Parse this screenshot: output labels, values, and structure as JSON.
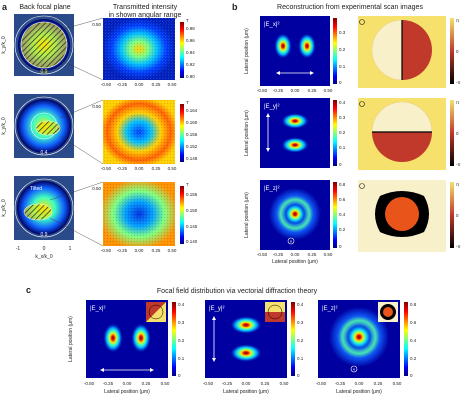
{
  "panel_a": {
    "label": "a",
    "col1_title": "Back focal plane",
    "col2_title_1": "Transmitted intensity",
    "col2_title_2": "in shown angular range",
    "bfp_ylabel": "k_y/k_0",
    "bfp_xlabel": "k_x/k_0",
    "bfp_ticks": [
      "-1",
      "0",
      "1"
    ],
    "na_labels": [
      "0.9",
      "0.4",
      "0.9"
    ],
    "tilt_label": "Tilted",
    "scan_ticks": [
      "-0.50",
      "-0.25",
      "0.00",
      "0.25",
      "0.50"
    ],
    "cbar1_ticks": [
      "T",
      "0.98",
      "0.96",
      "0.94",
      "0.92",
      "0.90"
    ],
    "cbar2_ticks": [
      "T",
      "0.164",
      "0.160",
      "0.156",
      "0.152",
      "0.148"
    ],
    "cbar3_ticks": [
      "T",
      "0.155",
      "0.150",
      "0.145",
      "0.140"
    ]
  },
  "panel_b": {
    "label": "b",
    "title": "Reconstruction from experimental scan images",
    "row_labels": [
      "|E_x|²",
      "|E_y|²",
      "|E_z|²"
    ],
    "ylabel": "Lateral position (μm)",
    "xlabel": "Lateral position (μm)",
    "ticks": [
      "-0.50",
      "-0.25",
      "0.00",
      "0.25",
      "0.50"
    ],
    "cbar1_ticks": [
      "0.3",
      "0.2",
      "0.1",
      "0"
    ],
    "cbar2_ticks": [
      "0.4",
      "0.3",
      "0.2",
      "0.1",
      "0"
    ],
    "cbar3_ticks": [
      "0.8",
      "0.6",
      "0.4",
      "0.2",
      "0"
    ],
    "phase_ticks": [
      "π",
      "0",
      "-π"
    ]
  },
  "panel_c": {
    "label": "c",
    "title": "Focal field distribution via vectorial diffraction theory",
    "row_labels": [
      "|E_x|²",
      "|E_y|²",
      "|E_z|²"
    ],
    "ylabel": "Lateral position (μm)",
    "xlabel": "Lateral position (μm)",
    "ticks": [
      "-0.50",
      "-0.25",
      "0.00",
      "0.25",
      "0.50"
    ],
    "cbar1_ticks": [
      "0.4",
      "0.3",
      "0.2",
      "0.1",
      "0"
    ],
    "cbar2_ticks": [
      "0.4",
      "0.3",
      "0.2",
      "0.1",
      "0"
    ],
    "cbar3_ticks": [
      "0.8",
      "0.6",
      "0.4",
      "0.2",
      "0"
    ]
  },
  "colors": {
    "jet_dark": "#00007f",
    "jet_blue": "#0040ff",
    "jet_cyan": "#00d0ff",
    "jet_yellow": "#ffe600",
    "jet_red": "#e31a00",
    "phase_black": "#000000",
    "phase_red": "#c0392b",
    "phase_yellow": "#f5e16b"
  }
}
